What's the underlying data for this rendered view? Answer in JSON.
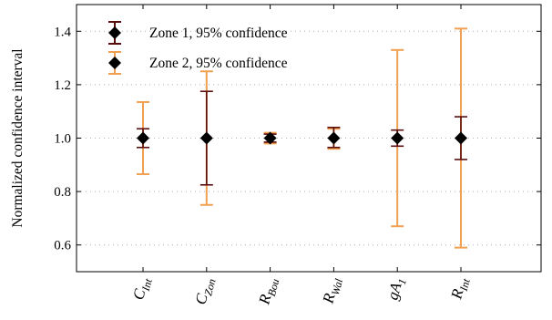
{
  "chart_data": {
    "type": "errorbar",
    "title": "",
    "xlabel": "",
    "ylabel": "Normalized confidence interval",
    "ylim": [
      0.5,
      1.5
    ],
    "yticks": [
      "0.6",
      "0.8",
      "1.0",
      "1.2",
      "1.4"
    ],
    "grid": "horizontal dotted",
    "legend_position": "top-left",
    "categories": [
      {
        "base": "C",
        "sub": "Int"
      },
      {
        "base": "C",
        "sub": "Zon"
      },
      {
        "base": "R",
        "sub": "Bou"
      },
      {
        "base": "R",
        "sub": "Wal"
      },
      {
        "base": "gA",
        "sub": "1"
      },
      {
        "base": "R",
        "sub": "Int"
      }
    ],
    "series": [
      {
        "name": "Zone 1, 95% confidence",
        "color": "#5a0d0d",
        "center": [
          1.0,
          1.0,
          1.0,
          1.0,
          1.0,
          1.0
        ],
        "lower": [
          0.965,
          0.825,
          0.985,
          0.965,
          0.97,
          0.92
        ],
        "upper": [
          1.035,
          1.175,
          1.015,
          1.04,
          1.03,
          1.08
        ]
      },
      {
        "name": "Zone 2, 95% confidence",
        "color": "#f0a050",
        "center": [
          1.0,
          1.0,
          1.0,
          1.0,
          1.0,
          1.0
        ],
        "lower": [
          0.865,
          0.75,
          0.98,
          0.96,
          0.67,
          0.59
        ],
        "upper": [
          1.135,
          1.25,
          1.02,
          1.035,
          1.33,
          1.41
        ]
      }
    ]
  }
}
